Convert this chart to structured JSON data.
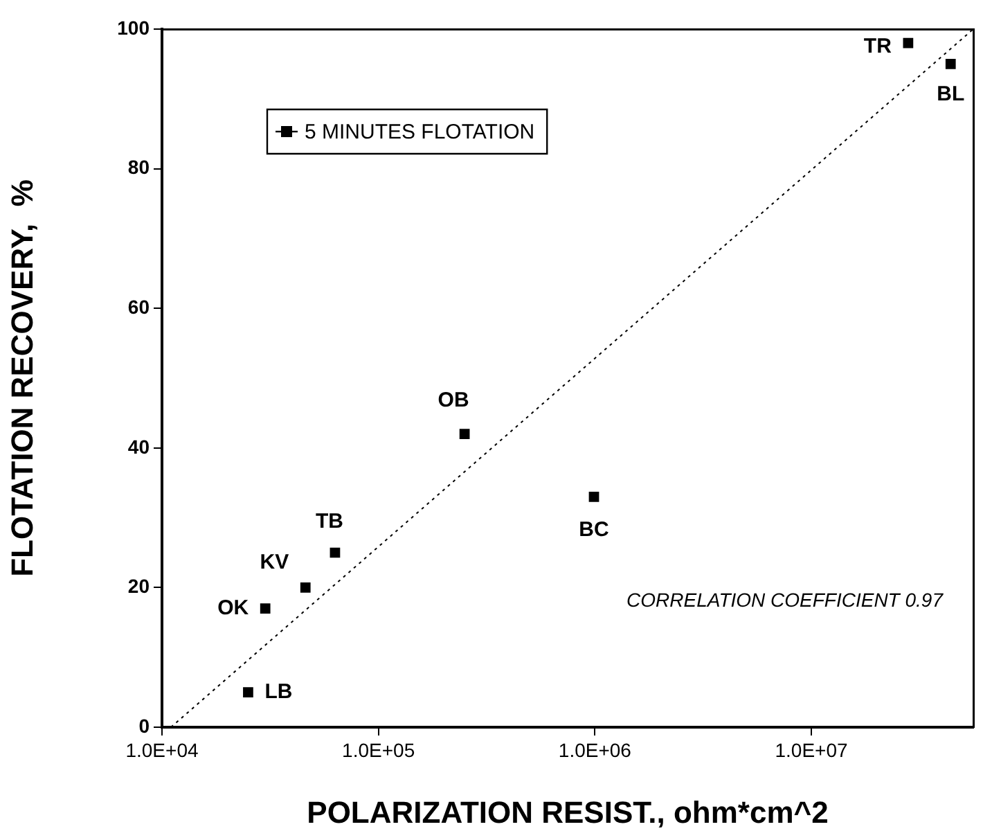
{
  "chart_data": {
    "type": "scatter",
    "xlabel": "POLARIZATION RESIST., ohm*cm^2",
    "ylabel": "FLOTATION RECOVERY,  %",
    "log": "x",
    "xlim": [
      10000,
      56000000
    ],
    "ylim": [
      0,
      100
    ],
    "xticks": [
      {
        "value": 10000,
        "label": "1.0E+04"
      },
      {
        "value": 100000,
        "label": "1.0E+05"
      },
      {
        "value": 1000000,
        "label": "1.0E+06"
      },
      {
        "value": 10000000,
        "label": "1.0E+07"
      }
    ],
    "yticks": [
      0,
      20,
      40,
      60,
      80,
      100
    ],
    "grid": false,
    "legend": "top left",
    "marker": "square",
    "series": [
      {
        "name": "5 MINUTES FLOTATION",
        "color": "#000000",
        "x": [
          25000,
          30000,
          46000,
          63000,
          250000,
          990000,
          28000000,
          44000000
        ],
        "values": [
          5,
          17,
          20,
          25,
          42,
          33,
          98,
          95
        ]
      },
      {
        "type": "line",
        "color": "#000000",
        "line_style": "dotted",
        "marker": "none",
        "x": [
          11000,
          56000000
        ],
        "values": [
          0,
          100
        ]
      }
    ],
    "annotations": [
      {
        "text": "LB",
        "x": 25000,
        "y": 5
      },
      {
        "text": "OK",
        "x": 30000,
        "y": 17
      },
      {
        "text": "KV",
        "x": 46000,
        "y": 20
      },
      {
        "text": "TB",
        "x": 63000,
        "y": 25
      },
      {
        "text": "OB",
        "x": 250000,
        "y": 42
      },
      {
        "text": "BC",
        "x": 990000,
        "y": 33
      },
      {
        "text": "TR",
        "x": 28000000,
        "y": 98
      },
      {
        "text": "BL",
        "x": 44000000,
        "y": 95
      },
      "CORRELATION COEFFICIENT 0.97"
    ]
  }
}
